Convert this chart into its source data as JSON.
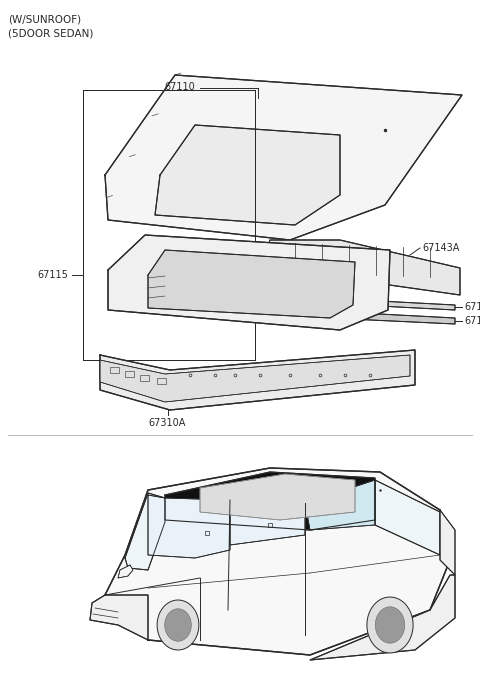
{
  "header_line1": "(W/SUNROOF)",
  "header_line2": "(5DOOR SEDAN)",
  "bg_color": "#ffffff",
  "line_color": "#2a2a2a",
  "label_color": "#2a2a2a",
  "fig_width": 4.8,
  "fig_height": 6.87,
  "dpi": 100,
  "label_fontsize": 7.0,
  "header_fontsize": 7.5
}
